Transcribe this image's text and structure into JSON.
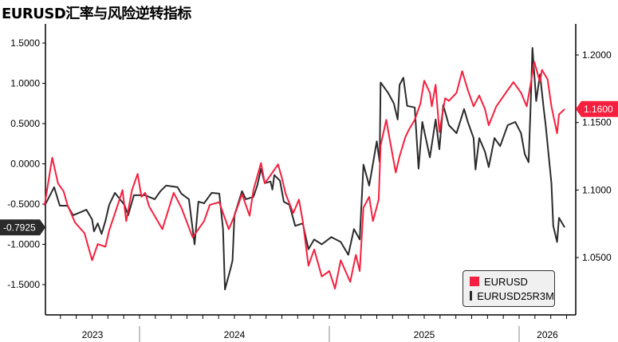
{
  "chart_data": {
    "type": "line",
    "title": "EURUSD汇率与风险逆转指标",
    "x_unit": "decimal year",
    "x_tick_labels": [
      "2023",
      "2024",
      "2025",
      "2026"
    ],
    "left_axis": {
      "range": [
        -1.75,
        1.75
      ],
      "ticks": [
        "1.5000",
        "1.0000",
        "0.5000",
        "0.0000",
        "-0.5000",
        "-1.0000",
        "-1.5000"
      ],
      "tick_values": [
        1.5,
        1.0,
        0.5,
        0.0,
        -0.5,
        -1.0,
        -1.5
      ]
    },
    "right_axis": {
      "range": [
        1.0,
        1.214
      ],
      "ticks": [
        "1.2000",
        "1.1500",
        "1.1000",
        "1.0500"
      ],
      "tick_values": [
        1.2,
        1.15,
        1.1,
        1.05
      ]
    },
    "legend": {
      "position": "bottom-right",
      "entries": [
        "EURUSD",
        "EURUSD25R3M"
      ]
    },
    "series": [
      {
        "name": "EURUSD",
        "axis": "right",
        "color": "#f5203f",
        "last_value_label": "1.1600",
        "points": [
          [
            2023.5,
            1.089
          ],
          [
            2023.54,
            1.124
          ],
          [
            2023.57,
            1.105
          ],
          [
            2023.6,
            1.099
          ],
          [
            2023.62,
            1.089
          ],
          [
            2023.66,
            1.076
          ],
          [
            2023.71,
            1.068
          ],
          [
            2023.75,
            1.048
          ],
          [
            2023.78,
            1.06
          ],
          [
            2023.82,
            1.058
          ],
          [
            2023.84,
            1.07
          ],
          [
            2023.89,
            1.091
          ],
          [
            2023.91,
            1.1
          ],
          [
            2023.93,
            1.077
          ],
          [
            2023.96,
            1.1
          ],
          [
            2023.99,
            1.112
          ],
          [
            2024.01,
            1.095
          ],
          [
            2024.03,
            1.098
          ],
          [
            2024.05,
            1.088
          ],
          [
            2024.1,
            1.076
          ],
          [
            2024.12,
            1.071
          ],
          [
            2024.18,
            1.098
          ],
          [
            2024.22,
            1.087
          ],
          [
            2024.28,
            1.065
          ],
          [
            2024.31,
            1.071
          ],
          [
            2024.34,
            1.077
          ],
          [
            2024.37,
            1.089
          ],
          [
            2024.42,
            1.091
          ],
          [
            2024.44,
            1.083
          ],
          [
            2024.47,
            1.071
          ],
          [
            2024.5,
            1.081
          ],
          [
            2024.54,
            1.097
          ],
          [
            2024.58,
            1.081
          ],
          [
            2024.6,
            1.1
          ],
          [
            2024.64,
            1.12
          ],
          [
            2024.66,
            1.105
          ],
          [
            2024.7,
            1.113
          ],
          [
            2024.73,
            1.119
          ],
          [
            2024.75,
            1.109
          ],
          [
            2024.77,
            1.097
          ],
          [
            2024.81,
            1.083
          ],
          [
            2024.84,
            1.093
          ],
          [
            2024.86,
            1.077
          ],
          [
            2024.89,
            1.044
          ],
          [
            2024.92,
            1.056
          ],
          [
            2024.96,
            1.036
          ],
          [
            2025.0,
            1.04
          ],
          [
            2025.03,
            1.027
          ],
          [
            2025.06,
            1.048
          ],
          [
            2025.11,
            1.032
          ],
          [
            2025.14,
            1.052
          ],
          [
            2025.16,
            1.04
          ],
          [
            2025.18,
            1.087
          ],
          [
            2025.21,
            1.095
          ],
          [
            2025.23,
            1.077
          ],
          [
            2025.26,
            1.093
          ],
          [
            2025.27,
            1.133
          ],
          [
            2025.3,
            1.152
          ],
          [
            2025.32,
            1.136
          ],
          [
            2025.35,
            1.113
          ],
          [
            2025.37,
            1.125
          ],
          [
            2025.4,
            1.139
          ],
          [
            2025.42,
            1.145
          ],
          [
            2025.45,
            1.152
          ],
          [
            2025.48,
            1.164
          ],
          [
            2025.5,
            1.181
          ],
          [
            2025.53,
            1.172
          ],
          [
            2025.54,
            1.162
          ],
          [
            2025.56,
            1.178
          ],
          [
            2025.58,
            1.143
          ],
          [
            2025.61,
            1.168
          ],
          [
            2025.63,
            1.166
          ],
          [
            2025.67,
            1.172
          ],
          [
            2025.7,
            1.188
          ],
          [
            2025.73,
            1.174
          ],
          [
            2025.76,
            1.162
          ],
          [
            2025.79,
            1.17
          ],
          [
            2025.82,
            1.16
          ],
          [
            2025.84,
            1.148
          ],
          [
            2025.88,
            1.162
          ],
          [
            2025.94,
            1.174
          ],
          [
            2025.97,
            1.18
          ],
          [
            2026.01,
            1.172
          ],
          [
            2026.04,
            1.162
          ],
          [
            2026.06,
            1.178
          ],
          [
            2026.08,
            1.195
          ],
          [
            2026.11,
            1.18
          ],
          [
            2026.12,
            1.189
          ],
          [
            2026.15,
            1.182
          ],
          [
            2026.17,
            1.162
          ],
          [
            2026.2,
            1.142
          ],
          [
            2026.21,
            1.156
          ],
          [
            2026.24,
            1.16
          ]
        ]
      },
      {
        "name": "EURUSD25R3M",
        "axis": "left",
        "color": "#2b2b2b",
        "last_value_label": "-0.7925",
        "points": [
          [
            2023.5,
            -0.52
          ],
          [
            2023.55,
            -0.29
          ],
          [
            2023.58,
            -0.52
          ],
          [
            2023.62,
            -0.52
          ],
          [
            2023.65,
            -0.64
          ],
          [
            2023.72,
            -0.57
          ],
          [
            2023.75,
            -0.69
          ],
          [
            2023.76,
            -0.84
          ],
          [
            2023.78,
            -0.74
          ],
          [
            2023.8,
            -0.87
          ],
          [
            2023.82,
            -0.71
          ],
          [
            2023.84,
            -0.51
          ],
          [
            2023.87,
            -0.36
          ],
          [
            2023.92,
            -0.51
          ],
          [
            2023.94,
            -0.64
          ],
          [
            2023.97,
            -0.39
          ],
          [
            2024.03,
            -0.39
          ],
          [
            2024.08,
            -0.44
          ],
          [
            2024.11,
            -0.34
          ],
          [
            2024.14,
            -0.27
          ],
          [
            2024.2,
            -0.29
          ],
          [
            2024.22,
            -0.37
          ],
          [
            2024.26,
            -0.44
          ],
          [
            2024.29,
            -1.0
          ],
          [
            2024.31,
            -0.47
          ],
          [
            2024.34,
            -0.49
          ],
          [
            2024.38,
            -0.36
          ],
          [
            2024.42,
            -0.37
          ],
          [
            2024.44,
            -0.81
          ],
          [
            2024.45,
            -1.56
          ],
          [
            2024.48,
            -1.3
          ],
          [
            2024.49,
            -1.2
          ],
          [
            2024.5,
            -0.64
          ],
          [
            2024.54,
            -0.34
          ],
          [
            2024.56,
            -0.44
          ],
          [
            2024.6,
            -0.41
          ],
          [
            2024.62,
            -0.27
          ],
          [
            2024.64,
            -0.06
          ],
          [
            2024.66,
            -0.24
          ],
          [
            2024.69,
            -0.22
          ],
          [
            2024.7,
            -0.32
          ],
          [
            2024.71,
            -0.14
          ],
          [
            2024.74,
            -0.21
          ],
          [
            2024.76,
            -0.47
          ],
          [
            2024.79,
            -0.51
          ],
          [
            2024.82,
            -0.77
          ],
          [
            2024.86,
            -0.74
          ],
          [
            2024.89,
            -1.06
          ],
          [
            2024.92,
            -0.94
          ],
          [
            2024.96,
            -1.0
          ],
          [
            2025.01,
            -0.91
          ],
          [
            2025.06,
            -0.97
          ],
          [
            2025.1,
            -1.13
          ],
          [
            2025.13,
            -0.81
          ],
          [
            2025.16,
            -0.94
          ],
          [
            2025.18,
            -0.01
          ],
          [
            2025.21,
            -0.27
          ],
          [
            2025.25,
            0.28
          ],
          [
            2025.265,
            0.02
          ],
          [
            2025.27,
            1.01
          ],
          [
            2025.31,
            0.88
          ],
          [
            2025.34,
            0.75
          ],
          [
            2025.36,
            0.55
          ],
          [
            2025.37,
            0.98
          ],
          [
            2025.39,
            1.07
          ],
          [
            2025.41,
            0.72
          ],
          [
            2025.45,
            0.7
          ],
          [
            2025.47,
            -0.06
          ],
          [
            2025.49,
            0.52
          ],
          [
            2025.53,
            0.08
          ],
          [
            2025.56,
            0.55
          ],
          [
            2025.58,
            0.18
          ],
          [
            2025.6,
            0.73
          ],
          [
            2025.63,
            0.48
          ],
          [
            2025.67,
            0.38
          ],
          [
            2025.71,
            0.68
          ],
          [
            2025.73,
            0.52
          ],
          [
            2025.76,
            0.32
          ],
          [
            2025.77,
            -0.07
          ],
          [
            2025.79,
            0.32
          ],
          [
            2025.82,
            0.15
          ],
          [
            2025.84,
            -0.04
          ],
          [
            2025.87,
            0.32
          ],
          [
            2025.9,
            0.22
          ],
          [
            2025.94,
            0.48
          ],
          [
            2025.98,
            0.52
          ],
          [
            2026.01,
            0.38
          ],
          [
            2026.03,
            0.12
          ],
          [
            2026.05,
            0.02
          ],
          [
            2026.06,
            0.68
          ],
          [
            2026.07,
            1.44
          ],
          [
            2026.09,
            0.78
          ],
          [
            2026.11,
            1.11
          ],
          [
            2026.13,
            0.68
          ],
          [
            2026.14,
            0.48
          ],
          [
            2026.17,
            -0.24
          ],
          [
            2026.18,
            -0.77
          ],
          [
            2026.2,
            -0.97
          ],
          [
            2026.21,
            -0.67
          ],
          [
            2026.24,
            -0.79
          ]
        ]
      }
    ]
  }
}
